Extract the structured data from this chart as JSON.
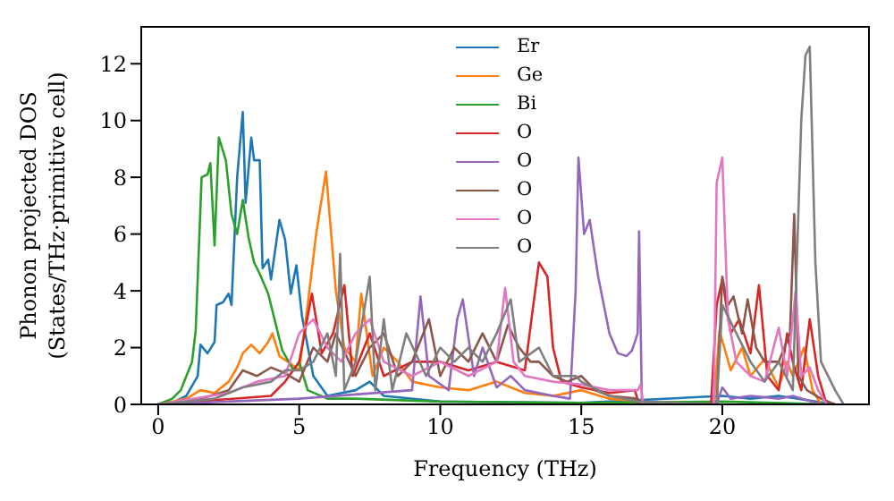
{
  "chart_data": {
    "type": "line",
    "xlabel": "Frequency (THz)",
    "ylabel": "Phonon projected DOS\n(States/THz·primitive cell)",
    "xlim": [
      -0.6,
      25.2
    ],
    "ylim": [
      0,
      13.3
    ],
    "xticks": [
      0,
      5,
      10,
      15,
      20
    ],
    "yticks": [
      0,
      2,
      4,
      6,
      8,
      10,
      12
    ],
    "grid": false,
    "legend": "top",
    "line_style": "solid",
    "marker": "none",
    "series": [
      {
        "name": "Er",
        "color": "#1f77b4",
        "x": [
          0,
          0.5,
          1,
          1.4,
          1.5,
          1.75,
          2,
          2.07,
          2.3,
          2.5,
          2.6,
          2.8,
          3,
          3.1,
          3.3,
          3.4,
          3.6,
          3.7,
          3.9,
          4,
          4.3,
          4.5,
          4.7,
          4.9,
          5.1,
          5.5,
          6,
          7,
          7.5,
          8,
          10,
          15,
          20,
          21,
          22,
          24
        ],
        "values": [
          0,
          0.05,
          0.3,
          1,
          2.1,
          1.8,
          2.2,
          3.5,
          3.6,
          3.9,
          3.5,
          8,
          10.3,
          7.1,
          9.4,
          8.6,
          8.6,
          4.8,
          5.1,
          4.4,
          6.5,
          5.8,
          3.9,
          4.9,
          3.1,
          1,
          0.3,
          0.5,
          0.8,
          0.3,
          0.1,
          0.05,
          0.3,
          0.2,
          0.3,
          0
        ]
      },
      {
        "name": "Ge",
        "color": "#ff7f0e",
        "x": [
          0,
          1,
          1.5,
          2,
          2.5,
          2.8,
          3,
          3.3,
          3.6,
          3.9,
          4.05,
          4.3,
          4.6,
          5,
          5.3,
          5.6,
          5.95,
          6.3,
          6.6,
          7,
          7.2,
          7.6,
          8,
          8.5,
          9,
          10,
          11,
          12,
          13,
          14,
          15,
          16,
          17,
          19.7,
          19.9,
          20.3,
          20.7,
          21,
          21.5,
          22,
          22.3,
          22.5,
          22.9,
          23.2,
          23.5
        ],
        "values": [
          0,
          0.2,
          0.5,
          0.4,
          0.8,
          1.3,
          1.8,
          2.1,
          1.8,
          2.2,
          2.5,
          1.7,
          1.5,
          1.2,
          3.5,
          6,
          8.2,
          4,
          2,
          1.5,
          3.9,
          1,
          2,
          1.5,
          0.8,
          0.6,
          0.5,
          0.8,
          0.4,
          0.3,
          0.5,
          0.2,
          0.1,
          0,
          2.6,
          1.2,
          2,
          1,
          1.6,
          0.6,
          1.5,
          1,
          2,
          0.5,
          0
        ]
      },
      {
        "name": "Bi",
        "color": "#2ca02c",
        "x": [
          0,
          0.5,
          0.8,
          1,
          1.2,
          1.33,
          1.54,
          1.75,
          1.85,
          2,
          2.15,
          2.4,
          2.6,
          2.8,
          3,
          3.2,
          3.4,
          3.6,
          3.9,
          4.1,
          4.4,
          4.8,
          5,
          5.3,
          6,
          7,
          10,
          15,
          20,
          24
        ],
        "values": [
          0,
          0.2,
          0.5,
          1,
          1.5,
          2.6,
          8,
          8.1,
          8.5,
          5.6,
          9.4,
          8.6,
          6.7,
          6,
          7.2,
          5.9,
          5,
          4.6,
          3.9,
          3.1,
          1.9,
          1.2,
          1.5,
          0.5,
          0.2,
          0.2,
          0.1,
          0.05,
          0.1,
          0
        ]
      },
      {
        "name": "O",
        "color": "#d62728",
        "x": [
          0,
          4,
          4.5,
          5,
          5.45,
          5.8,
          6.2,
          6.6,
          6.9,
          7.5,
          8,
          9,
          10,
          11,
          12,
          13,
          13.3,
          13.5,
          13.8,
          14,
          14.3,
          15,
          16,
          16.9,
          17.05,
          19.6,
          19.8,
          20,
          20.3,
          20.6,
          21,
          21.3,
          21.6,
          22,
          22.3,
          22.5,
          22.8,
          23.1,
          23.4,
          23.7
        ],
        "values": [
          0,
          0.3,
          0.8,
          1.5,
          3.9,
          1.8,
          2.5,
          4.2,
          1,
          2.5,
          1,
          1.5,
          1.5,
          1.2,
          1.5,
          1.2,
          3.5,
          5,
          4.5,
          2,
          0.8,
          0.6,
          0.4,
          0.5,
          0,
          0,
          3.5,
          4.4,
          2.5,
          3,
          1.8,
          4.2,
          1,
          0.5,
          2.5,
          1.5,
          0.5,
          3,
          1,
          0
        ]
      },
      {
        "name": "O",
        "color": "#9467bd",
        "x": [
          0,
          5,
          9,
          9.3,
          9.6,
          10.3,
          10.6,
          10.8,
          11.2,
          11.5,
          12,
          12.5,
          13,
          14,
          14.6,
          14.8,
          14.9,
          15.1,
          15.3,
          15.6,
          16,
          16.3,
          16.6,
          16.8,
          17,
          17.05,
          17.15,
          19.8,
          20,
          20.3,
          21,
          22,
          22.5,
          23.5
        ],
        "values": [
          0,
          0.2,
          0.5,
          3.8,
          1,
          0.5,
          3,
          3.7,
          1,
          2,
          0.6,
          1,
          0.5,
          0.3,
          0.2,
          4,
          8.7,
          6,
          6.5,
          4.5,
          2.5,
          1.8,
          1.7,
          1.9,
          2.5,
          6.1,
          0,
          0,
          0.6,
          0.2,
          0.3,
          0.2,
          0.3,
          0
        ]
      },
      {
        "name": "O",
        "color": "#8c564b",
        "x": [
          0,
          1.5,
          2.5,
          3,
          3.5,
          4,
          4.5,
          5,
          5.5,
          6,
          6.3,
          7,
          7.5,
          8,
          8.5,
          9,
          9.6,
          10,
          10.5,
          11,
          11.5,
          12,
          12.4,
          12.8,
          13.2,
          13.5,
          14,
          14.5,
          15,
          15.5,
          16,
          17,
          17.2,
          19.8,
          20,
          20.2,
          20.4,
          20.7,
          20.9,
          21.2,
          21.5,
          22,
          22.4,
          22.55,
          22.7,
          23,
          23.5,
          24
        ],
        "values": [
          0,
          0.2,
          0.5,
          1.2,
          1,
          1.3,
          1.1,
          0.8,
          2,
          1.5,
          2.5,
          1,
          2,
          2.5,
          1,
          1.5,
          3,
          1,
          2,
          1.5,
          2.5,
          1.5,
          2.8,
          2,
          1.5,
          1.5,
          1,
          0.8,
          1,
          0.5,
          0.3,
          0.2,
          0,
          0,
          4.5,
          3.5,
          3.8,
          2.5,
          3.7,
          2,
          1.5,
          1.5,
          2.5,
          6.7,
          1,
          0.5,
          0.2,
          0
        ]
      },
      {
        "name": "O",
        "color": "#e377c2",
        "x": [
          0,
          2.5,
          3.5,
          4.5,
          5,
          5.5,
          6,
          6.5,
          7,
          7.5,
          8,
          9,
          10,
          11,
          12,
          12.3,
          12.6,
          13,
          14,
          15,
          16,
          17,
          17.1,
          17.2,
          19.7,
          19.8,
          20,
          20.2,
          20.5,
          21,
          21.5,
          22,
          22.3,
          22.6,
          22.8,
          23.1,
          23.4,
          23.7
        ],
        "values": [
          0,
          0.4,
          0.8,
          1,
          2.5,
          3,
          2,
          1.5,
          2.5,
          3,
          1.5,
          1,
          1.5,
          1,
          1.5,
          4.1,
          1.5,
          1,
          0.8,
          0.7,
          0.5,
          0.5,
          0.7,
          0,
          0,
          7.8,
          8.7,
          3,
          1.5,
          1,
          0.8,
          2.7,
          1,
          4,
          1,
          1.3,
          0.5,
          0
        ]
      },
      {
        "name": "O",
        "color": "#7f7f7f",
        "x": [
          0,
          2,
          3,
          4,
          4.5,
          5,
          5.5,
          6,
          6.3,
          6.45,
          6.6,
          7,
          7.5,
          7.7,
          8,
          8.3,
          8.8,
          9.5,
          10,
          10.5,
          11,
          11.5,
          12,
          12.5,
          12.8,
          13.5,
          14,
          14.8,
          15,
          16,
          17,
          19.8,
          20,
          20.5,
          21,
          21.5,
          22,
          22.5,
          22.8,
          22.95,
          23.1,
          23.3,
          23.5,
          24,
          24.3
        ],
        "values": [
          0,
          0.2,
          0.6,
          0.8,
          1.2,
          1.2,
          1.5,
          2.5,
          1,
          5.3,
          0.5,
          1.5,
          4.5,
          0.5,
          3,
          0.5,
          2.5,
          1,
          2,
          1.5,
          2,
          1.5,
          2.5,
          3.7,
          1.5,
          2,
          1,
          1,
          0.8,
          0.3,
          0.1,
          0,
          3.5,
          2.5,
          1.5,
          0.8,
          1.5,
          0.5,
          10,
          12.3,
          12.6,
          5,
          1.5,
          0.5,
          0
        ]
      }
    ]
  }
}
